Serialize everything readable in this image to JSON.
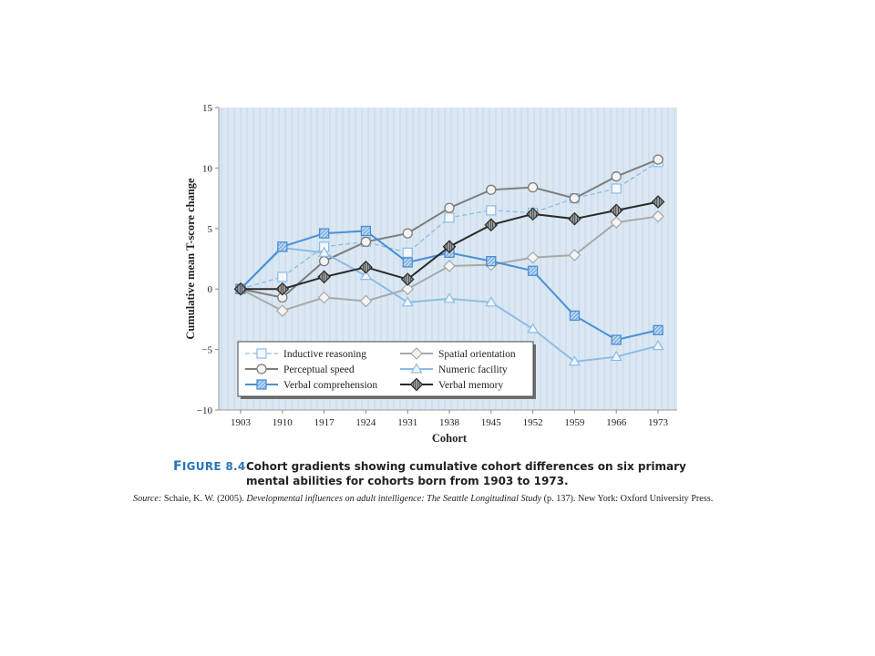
{
  "figure": {
    "label_prefix": "F",
    "label_rest": "IGURE 8.4",
    "caption": "Cohort gradients showing cumulative cohort differences on six primary mental abilities for cohorts born from 1903 to 1973.",
    "source_label": "Source:",
    "source_authors": "Schaie, K. W. (2005).",
    "source_title": "Developmental influences on adult intelligence: The Seattle Longitudinal Study",
    "source_rest": "(p. 137). New York: Oxford University Press."
  },
  "colors": {
    "plot_background": "#dbe8f3",
    "stripes": "#c9dbe9",
    "blue": "#4a8fd6",
    "light_blue": "#8dbbe6",
    "gray": "#7d7d7d",
    "light_gray": "#a8a8a8",
    "black": "#2a2a2a"
  },
  "chart_data": {
    "type": "line",
    "title": "",
    "xlabel": "Cohort",
    "ylabel": "Cumulative mean T-score change",
    "categories": [
      "1903",
      "1910",
      "1917",
      "1924",
      "1931",
      "1938",
      "1945",
      "1952",
      "1959",
      "1966",
      "1973"
    ],
    "ylim": [
      -10,
      15
    ],
    "yticks": [
      "15",
      "10",
      "5",
      "0",
      "−5",
      "−10"
    ],
    "ytick_values": [
      15,
      10,
      5,
      0,
      -5,
      -10
    ],
    "grid": false,
    "legend_position": "bottom-left",
    "series": [
      {
        "name": "Inductive reasoning",
        "marker": "square-open",
        "line": "dashed",
        "color": "light_blue",
        "values": [
          0,
          1.0,
          3.5,
          3.9,
          3.0,
          5.9,
          6.5,
          6.3,
          7.5,
          8.3,
          10.5
        ]
      },
      {
        "name": "Spatial orientation",
        "marker": "diamond-open",
        "line": "solid",
        "color": "light_gray",
        "values": [
          0,
          -1.8,
          -0.7,
          -1.0,
          0,
          1.9,
          2.0,
          2.6,
          2.8,
          5.5,
          6.0
        ]
      },
      {
        "name": "Perceptual speed",
        "marker": "circle-open",
        "line": "solid",
        "color": "gray",
        "values": [
          0,
          -0.7,
          2.3,
          3.9,
          4.6,
          6.7,
          8.2,
          8.4,
          7.5,
          9.3,
          10.7
        ]
      },
      {
        "name": "Numeric facility",
        "marker": "triangle-open",
        "line": "solid",
        "color": "light_blue",
        "values": [
          0,
          3.4,
          3.0,
          1.1,
          -1.1,
          -0.8,
          -1.1,
          -3.3,
          -6.0,
          -5.6,
          -4.7
        ]
      },
      {
        "name": "Verbal comprehension",
        "marker": "square-hatched",
        "line": "solid",
        "color": "blue",
        "values": [
          0,
          3.5,
          4.6,
          4.8,
          2.2,
          3.0,
          2.3,
          1.5,
          -2.2,
          -4.2,
          -3.4
        ]
      },
      {
        "name": "Verbal memory",
        "marker": "diamond-filled",
        "line": "solid",
        "color": "black",
        "values": [
          0,
          0,
          1.0,
          1.8,
          0.8,
          3.5,
          5.3,
          6.2,
          5.8,
          6.5,
          7.2
        ]
      }
    ]
  }
}
